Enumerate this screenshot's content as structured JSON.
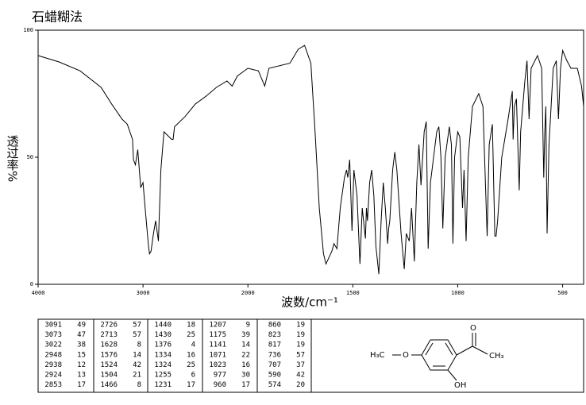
{
  "chart_data": {
    "type": "line",
    "title": "石蜡糊法",
    "xlabel": "波数/cm⁻¹",
    "ylabel": "透过率%",
    "xlim": [
      4000,
      400
    ],
    "xticks": [
      4000,
      3000,
      2000,
      1500,
      1000,
      500
    ],
    "ylim": [
      0,
      100
    ],
    "yticks": [
      0,
      50,
      100
    ],
    "series": [
      {
        "color": "#000000",
        "x": [
          4000,
          3800,
          3600,
          3400,
          3300,
          3200,
          3150,
          3100,
          3091,
          3073,
          3050,
          3022,
          3000,
          2980,
          2948,
          2938,
          2924,
          2900,
          2880,
          2853,
          2830,
          2800,
          2726,
          2713,
          2700,
          2600,
          2500,
          2400,
          2300,
          2200,
          2150,
          2100,
          2000,
          1950,
          1920,
          1900,
          1800,
          1760,
          1730,
          1700,
          1680,
          1660,
          1640,
          1628,
          1600,
          1590,
          1576,
          1560,
          1540,
          1530,
          1524,
          1515,
          1504,
          1495,
          1480,
          1466,
          1455,
          1440,
          1435,
          1430,
          1420,
          1410,
          1400,
          1390,
          1376,
          1365,
          1355,
          1345,
          1334,
          1329,
          1324,
          1310,
          1300,
          1290,
          1270,
          1255,
          1245,
          1231,
          1220,
          1207,
          1195,
          1185,
          1175,
          1160,
          1150,
          1141,
          1130,
          1100,
          1090,
          1080,
          1071,
          1060,
          1040,
          1030,
          1023,
          1015,
          1000,
          990,
          977,
          970,
          960,
          950,
          930,
          900,
          880,
          860,
          850,
          835,
          823,
          817,
          810,
          790,
          760,
          740,
          736,
          730,
          720,
          707,
          700,
          680,
          670,
          660,
          650,
          620,
          600,
          590,
          585,
          580,
          574,
          565,
          545,
          530,
          520,
          510,
          500,
          480,
          460,
          430,
          410,
          400
        ],
        "values": [
          90,
          87.5,
          84,
          77.5,
          71,
          65,
          63,
          57,
          49,
          47,
          53,
          38,
          40,
          30,
          15,
          12,
          13,
          20,
          25,
          17,
          45,
          60,
          57,
          57,
          62,
          66,
          71,
          74,
          77.5,
          80,
          78,
          82,
          85,
          84,
          78,
          85,
          87,
          92.5,
          94,
          87,
          60,
          30,
          12,
          8,
          13,
          16,
          14,
          30,
          42,
          45,
          42,
          49,
          21,
          45,
          35,
          8,
          30,
          18,
          30,
          25,
          40,
          45,
          35,
          15,
          4,
          25,
          40,
          30,
          16,
          22,
          25,
          45,
          52,
          45,
          20,
          6,
          20,
          17,
          30,
          9,
          40,
          55,
          39,
          60,
          64,
          14,
          40,
          60,
          62,
          50,
          22,
          50,
          62,
          55,
          16,
          50,
          60,
          58,
          30,
          45,
          17,
          50,
          70,
          75,
          70,
          19,
          55,
          63,
          19,
          19,
          25,
          50,
          65,
          76,
          57,
          70,
          73,
          37,
          60,
          80,
          88,
          65,
          85,
          90,
          85,
          42,
          60,
          70,
          20,
          55,
          85,
          88,
          65,
          85,
          92,
          88,
          85,
          85,
          78,
          70
        ]
      }
    ]
  },
  "peak_table": {
    "rows": [
      [
        [
          3091,
          49
        ],
        [
          2726,
          57
        ],
        [
          1440,
          18
        ],
        [
          1207,
          9
        ],
        [
          860,
          19
        ]
      ],
      [
        [
          3073,
          47
        ],
        [
          2713,
          57
        ],
        [
          1430,
          25
        ],
        [
          1175,
          39
        ],
        [
          823,
          19
        ]
      ],
      [
        [
          3022,
          38
        ],
        [
          1628,
          8
        ],
        [
          1376,
          4
        ],
        [
          1141,
          14
        ],
        [
          817,
          19
        ]
      ],
      [
        [
          2948,
          15
        ],
        [
          1576,
          14
        ],
        [
          1334,
          16
        ],
        [
          1071,
          22
        ],
        [
          736,
          57
        ]
      ],
      [
        [
          2938,
          12
        ],
        [
          1524,
          42
        ],
        [
          1324,
          25
        ],
        [
          1023,
          16
        ],
        [
          707,
          37
        ]
      ],
      [
        [
          2924,
          13
        ],
        [
          1504,
          21
        ],
        [
          1255,
          6
        ],
        [
          977,
          30
        ],
        [
          590,
          42
        ]
      ],
      [
        [
          2853,
          17
        ],
        [
          1466,
          8
        ],
        [
          1231,
          17
        ],
        [
          960,
          17
        ],
        [
          574,
          20
        ]
      ]
    ]
  },
  "structure": {
    "labels": [
      "H₃C",
      "O",
      "O",
      "CH₃",
      "OH"
    ]
  }
}
